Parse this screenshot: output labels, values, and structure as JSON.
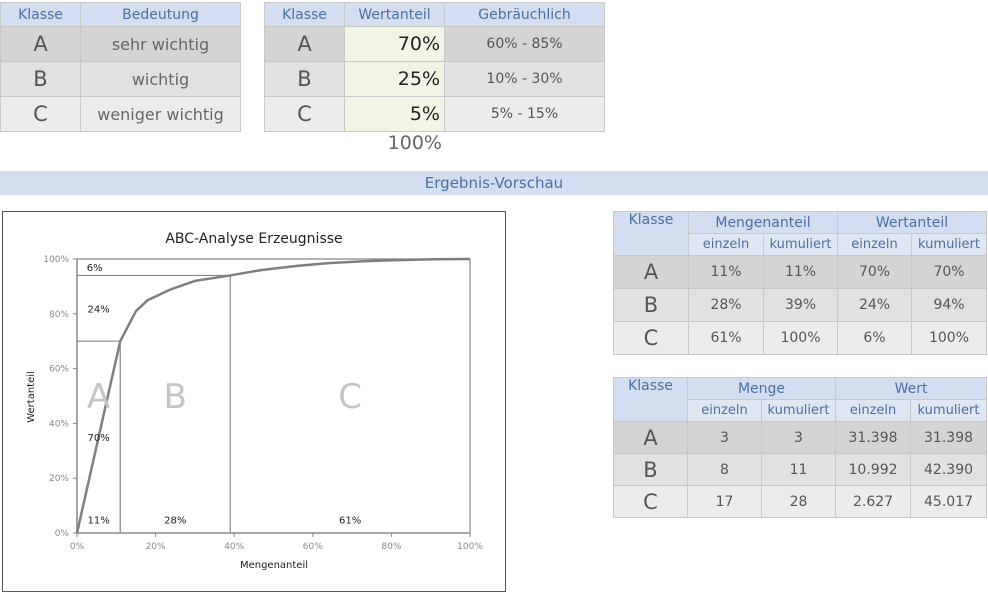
{
  "class_table": {
    "headers": [
      "Klasse",
      "Bedeutung"
    ],
    "rows": [
      {
        "klasse": "A",
        "bedeutung": "sehr wichtig"
      },
      {
        "klasse": "B",
        "bedeutung": "wichtig"
      },
      {
        "klasse": "C",
        "bedeutung": "weniger wichtig"
      }
    ]
  },
  "value_table": {
    "headers": [
      "Klasse",
      "Wertanteil",
      "Gebräuchlich"
    ],
    "rows": [
      {
        "klasse": "A",
        "wertanteil": "70%",
        "gebrauchlich": "60%  - 85%"
      },
      {
        "klasse": "B",
        "wertanteil": "25%",
        "gebrauchlich": "10%  - 30%"
      },
      {
        "klasse": "C",
        "wertanteil": "5%",
        "gebrauchlich": "5%  - 15%"
      }
    ],
    "total": "100%"
  },
  "section_banner": "Ergebnis-Vorschau",
  "share_table": {
    "headers": [
      "Klasse",
      "Mengenanteil",
      "Wertanteil"
    ],
    "subheaders": [
      "einzeln",
      "kumuliert",
      "einzeln",
      "kumuliert"
    ],
    "rows": [
      {
        "klasse": "A",
        "m_einzeln": "11%",
        "m_kum": "11%",
        "w_einzeln": "70%",
        "w_kum": "70%"
      },
      {
        "klasse": "B",
        "m_einzeln": "28%",
        "m_kum": "39%",
        "w_einzeln": "24%",
        "w_kum": "94%"
      },
      {
        "klasse": "C",
        "m_einzeln": "61%",
        "m_kum": "100%",
        "w_einzeln": "6%",
        "w_kum": "100%"
      }
    ]
  },
  "abs_table": {
    "headers": [
      "Klasse",
      "Menge",
      "Wert"
    ],
    "subheaders": [
      "einzeln",
      "kumuliert",
      "einzeln",
      "kumuliert"
    ],
    "rows": [
      {
        "klasse": "A",
        "m_einzeln": "3",
        "m_kum": "3",
        "w_einzeln": "31.398",
        "w_kum": "31.398"
      },
      {
        "klasse": "B",
        "m_einzeln": "8",
        "m_kum": "11",
        "w_einzeln": "10.992",
        "w_kum": "42.390"
      },
      {
        "klasse": "C",
        "m_einzeln": "17",
        "m_kum": "28",
        "w_einzeln": "2.627",
        "w_kum": "45.017"
      }
    ]
  },
  "chart_data": {
    "type": "line",
    "title": "ABC-Analyse Erzeugnisse",
    "xlabel": "Mengenanteil",
    "ylabel": "Wertanteil",
    "xlim": [
      0,
      100
    ],
    "ylim": [
      0,
      100
    ],
    "x_ticks": [
      "0%",
      "20%",
      "40%",
      "60%",
      "80%",
      "100%"
    ],
    "y_ticks": [
      "0%",
      "20%",
      "40%",
      "60%",
      "80%",
      "100%"
    ],
    "grid": false,
    "series": [
      {
        "x": [
          0,
          11,
          15,
          18,
          24,
          30,
          39,
          47,
          56,
          64,
          73,
          82,
          91,
          100
        ],
        "y": [
          0,
          70,
          81,
          85,
          89,
          92,
          94,
          96,
          97.5,
          98.5,
          99.2,
          99.6,
          99.9,
          100
        ]
      }
    ],
    "class_bounds": {
      "x": [
        11,
        39
      ],
      "y": [
        70,
        94
      ]
    },
    "class_labels": [
      {
        "text": "A",
        "x": 5.5,
        "y": 50
      },
      {
        "text": "B",
        "x": 25,
        "y": 50
      },
      {
        "text": "C",
        "x": 69.5,
        "y": 50
      }
    ],
    "annotations": [
      {
        "text": "6%",
        "x": 4.5,
        "y": 97
      },
      {
        "text": "24%",
        "x": 5.5,
        "y": 82
      },
      {
        "text": "70%",
        "x": 5.5,
        "y": 35
      },
      {
        "text": "11%",
        "x": 5.5,
        "y": 5
      },
      {
        "text": "28%",
        "x": 25,
        "y": 5
      },
      {
        "text": "61%",
        "x": 69.5,
        "y": 5
      }
    ]
  }
}
